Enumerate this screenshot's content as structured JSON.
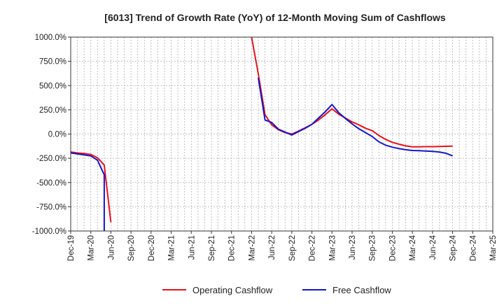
{
  "chart_data": {
    "type": "line",
    "title": "[6013]  Trend of Growth Rate (YoY) of 12-Month Moving Sum of Cashflows",
    "xlabel": "",
    "ylabel": "",
    "ylim": [
      -1000,
      1000
    ],
    "yticks": [
      1000,
      750,
      500,
      250,
      0,
      -250,
      -500,
      -750,
      -1000
    ],
    "ytick_labels": [
      "1000.0%",
      "750.0%",
      "500.0%",
      "250.0%",
      "0.0%",
      "-250.0%",
      "-500.0%",
      "-750.0%",
      "-1000.0%"
    ],
    "x_ticks": [
      "Dec-19",
      "Mar-20",
      "Jun-20",
      "Sep-20",
      "Dec-20",
      "Mar-21",
      "Jun-21",
      "Sep-21",
      "Dec-21",
      "Mar-22",
      "Jun-22",
      "Sep-22",
      "Dec-22",
      "Mar-23",
      "Jun-23",
      "Sep-23",
      "Dec-23",
      "Mar-24",
      "Jun-24",
      "Sep-24",
      "Dec-24",
      "Mar-25"
    ],
    "grid": true,
    "legend_position": "bottom",
    "series": [
      {
        "name": "Operating Cashflow",
        "color": "#e8111b",
        "segments": [
          [
            {
              "x": "Dec-19",
              "y": -185
            },
            {
              "x": "Jan-20",
              "y": -195
            },
            {
              "x": "Feb-20",
              "y": -200
            },
            {
              "x": "Mar-20",
              "y": -210
            },
            {
              "x": "Apr-20",
              "y": -245
            },
            {
              "x": "May-20",
              "y": -320
            },
            {
              "x": "Jun-20",
              "y": -910
            }
          ],
          [
            {
              "x": "Mar-22",
              "y": 1000
            },
            {
              "x": "Apr-22",
              "y": 620
            },
            {
              "x": "May-22",
              "y": 200
            },
            {
              "x": "Jun-22",
              "y": 95
            },
            {
              "x": "Jul-22",
              "y": 45
            },
            {
              "x": "Aug-22",
              "y": 15
            },
            {
              "x": "Sep-22",
              "y": 0
            },
            {
              "x": "Oct-22",
              "y": 30
            },
            {
              "x": "Nov-22",
              "y": 65
            },
            {
              "x": "Dec-22",
              "y": 100
            },
            {
              "x": "Jan-23",
              "y": 145
            },
            {
              "x": "Feb-23",
              "y": 200
            },
            {
              "x": "Mar-23",
              "y": 260
            },
            {
              "x": "Apr-23",
              "y": 205
            },
            {
              "x": "May-23",
              "y": 165
            },
            {
              "x": "Jun-23",
              "y": 125
            },
            {
              "x": "Jul-23",
              "y": 95
            },
            {
              "x": "Aug-23",
              "y": 60
            },
            {
              "x": "Sep-23",
              "y": 35
            },
            {
              "x": "Oct-23",
              "y": -15
            },
            {
              "x": "Nov-23",
              "y": -55
            },
            {
              "x": "Dec-23",
              "y": -85
            },
            {
              "x": "Jan-24",
              "y": -105
            },
            {
              "x": "Feb-24",
              "y": -122
            },
            {
              "x": "Mar-24",
              "y": -132
            },
            {
              "x": "Apr-24",
              "y": -132
            },
            {
              "x": "May-24",
              "y": -130
            },
            {
              "x": "Jun-24",
              "y": -130
            },
            {
              "x": "Jul-24",
              "y": -128
            },
            {
              "x": "Aug-24",
              "y": -126
            },
            {
              "x": "Sep-24",
              "y": -125
            }
          ]
        ]
      },
      {
        "name": "Free Cashflow",
        "color": "#1515cc",
        "segments": [
          [
            {
              "x": "Dec-19",
              "y": -195
            },
            {
              "x": "Jan-20",
              "y": -205
            },
            {
              "x": "Feb-20",
              "y": -215
            },
            {
              "x": "Mar-20",
              "y": -225
            },
            {
              "x": "Apr-20",
              "y": -270
            },
            {
              "x": "May-20",
              "y": -420
            },
            {
              "x": "May-20",
              "y": -1000
            }
          ],
          [
            {
              "x": "Apr-22",
              "y": 580
            },
            {
              "x": "May-22",
              "y": 145
            },
            {
              "x": "Jun-22",
              "y": 120
            },
            {
              "x": "Jul-22",
              "y": 50
            },
            {
              "x": "Aug-22",
              "y": 20
            },
            {
              "x": "Sep-22",
              "y": -10
            },
            {
              "x": "Oct-22",
              "y": 25
            },
            {
              "x": "Nov-22",
              "y": 60
            },
            {
              "x": "Dec-22",
              "y": 100
            },
            {
              "x": "Jan-23",
              "y": 165
            },
            {
              "x": "Feb-23",
              "y": 230
            },
            {
              "x": "Mar-23",
              "y": 305
            },
            {
              "x": "Apr-23",
              "y": 220
            },
            {
              "x": "May-23",
              "y": 160
            },
            {
              "x": "Jun-23",
              "y": 105
            },
            {
              "x": "Jul-23",
              "y": 55
            },
            {
              "x": "Aug-23",
              "y": 15
            },
            {
              "x": "Sep-23",
              "y": -25
            },
            {
              "x": "Oct-23",
              "y": -80
            },
            {
              "x": "Nov-23",
              "y": -115
            },
            {
              "x": "Dec-23",
              "y": -135
            },
            {
              "x": "Jan-24",
              "y": -150
            },
            {
              "x": "Feb-24",
              "y": -162
            },
            {
              "x": "Mar-24",
              "y": -170
            },
            {
              "x": "Apr-24",
              "y": -172
            },
            {
              "x": "May-24",
              "y": -175
            },
            {
              "x": "Jun-24",
              "y": -178
            },
            {
              "x": "Jul-24",
              "y": -185
            },
            {
              "x": "Aug-24",
              "y": -198
            },
            {
              "x": "Sep-24",
              "y": -225
            }
          ]
        ]
      }
    ]
  }
}
